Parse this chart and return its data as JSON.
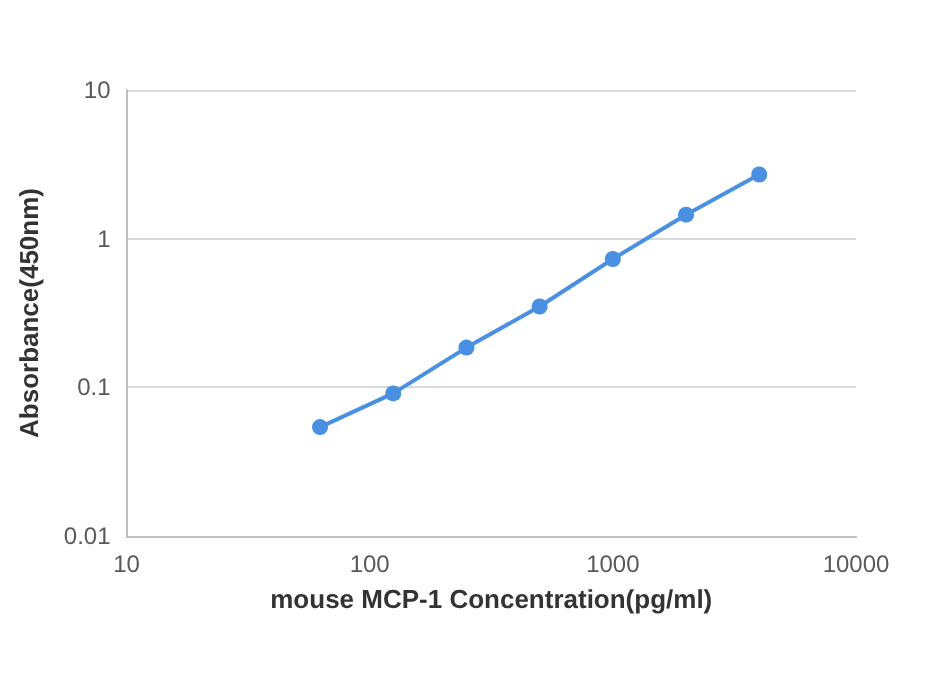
{
  "chart_data": {
    "type": "line",
    "xlabel": "mouse MCP-1 Concentration(pg/ml)",
    "ylabel": "Absorbance(450nm)",
    "x": [
      62.5,
      125,
      250,
      500,
      1000,
      2000,
      4000
    ],
    "series": [
      {
        "color": "#4a90e2",
        "values": [
          0.054,
          0.091,
          0.185,
          0.35,
          0.73,
          1.45,
          2.7
        ]
      }
    ],
    "log": "xy",
    "xlim": [
      10,
      10000
    ],
    "xticks": [
      10,
      100,
      1000,
      10000
    ],
    "ylim": [
      0.01,
      10
    ],
    "yticks": [
      0.01,
      0.1,
      1,
      10
    ],
    "grid": "y",
    "marker": "circle",
    "line_style": "solid"
  }
}
